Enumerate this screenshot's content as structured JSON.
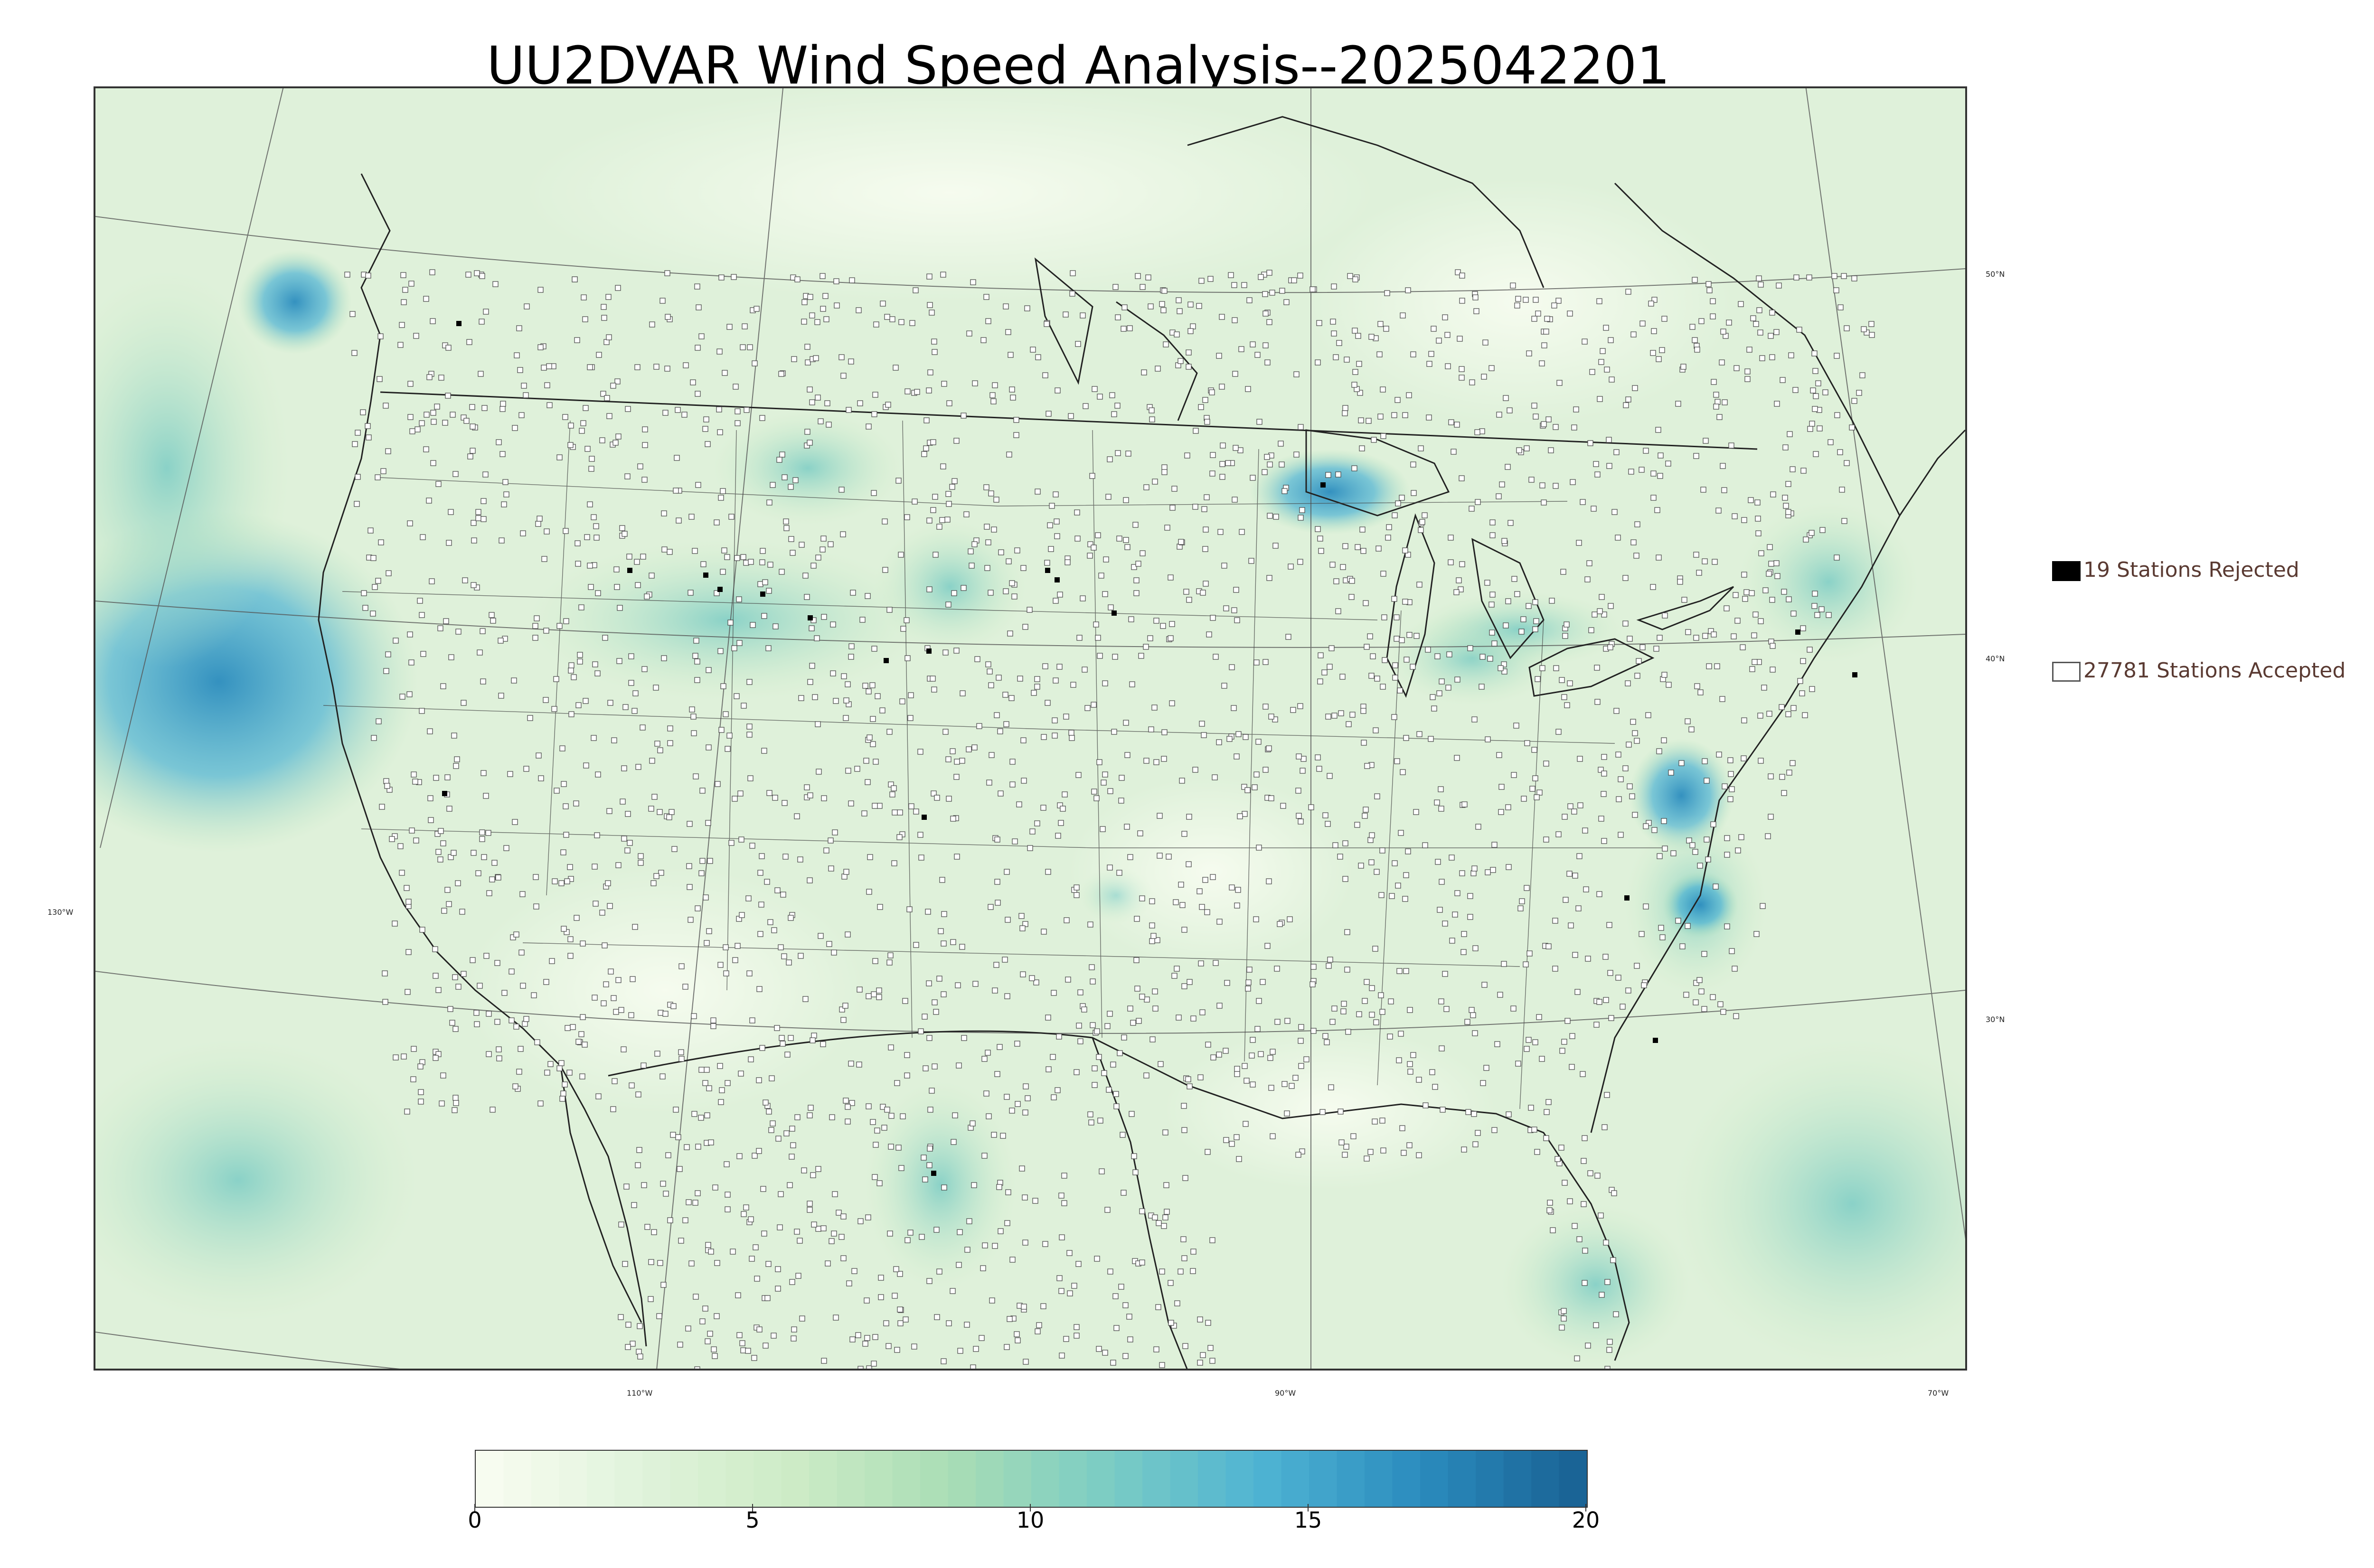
{
  "title": "UU2DVAR Wind Speed Analysis--2025042201",
  "grid_labels": {
    "lat": [
      "50°N",
      "40°N",
      "30°N"
    ],
    "lon": [
      "130°W",
      "110°W",
      "90°W",
      "70°W"
    ]
  },
  "legend": {
    "rejected": "19 Stations Rejected",
    "accepted": "27781 Stations Accepted"
  },
  "colorbar": {
    "min": 0,
    "max": 20,
    "ticks": [
      "0",
      "5",
      "10",
      "15",
      "20"
    ],
    "colors": [
      "#f7fcf0",
      "#e0f3db",
      "#ccebc5",
      "#a8ddb5",
      "#7bccc4",
      "#4eb3d3",
      "#2b8cbe",
      "#1a6496"
    ]
  },
  "colors": {
    "land": "#e9f6e6",
    "station_accepted": "#ffffff",
    "station_rejected": "#000000"
  }
}
